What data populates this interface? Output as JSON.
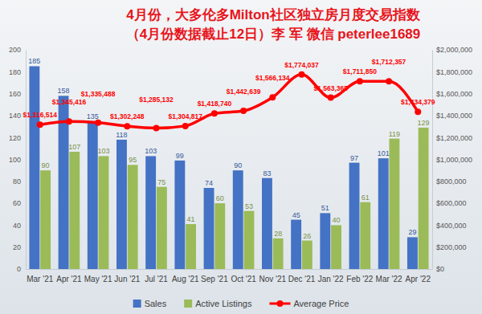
{
  "chart_data": {
    "type": "bar",
    "title": "4月份，大多伦多Milton社区独立房月度交易指数",
    "subtitle": "（4月份数据截止12日）李 军 微信 peterlee1689",
    "categories": [
      "Mar '21",
      "Apr '21",
      "May '21",
      "Jun '21",
      "Jul '21",
      "Aug '21",
      "Sep '21",
      "Oct '21",
      "Nov '21",
      "Dec '21",
      "Jan '22",
      "Feb '22",
      "Mar '22",
      "Apr '22"
    ],
    "series": [
      {
        "name": "Sales",
        "type": "bar",
        "color": "#4472c4",
        "values": [
          185,
          158,
          135,
          118,
          103,
          99,
          74,
          90,
          83,
          45,
          51,
          97,
          101,
          29
        ]
      },
      {
        "name": "Active Listings",
        "type": "bar",
        "color": "#9bbb59",
        "values": [
          90,
          107,
          103,
          95,
          75,
          41,
          60,
          53,
          28,
          26,
          40,
          61,
          119,
          129
        ]
      },
      {
        "name": "Average Price",
        "type": "line",
        "axis": "y2",
        "color": "#ff0000",
        "marker": "circle",
        "values": [
          1316514,
          1345416,
          1335488,
          1302248,
          1285132,
          1304817,
          1418740,
          1442639,
          1566134,
          1774037,
          1563365,
          1711850,
          1712357,
          1434379
        ],
        "value_labels": [
          "$1,316,514",
          "$1,345,416",
          "$1,335,488",
          "$1,302,248",
          "$1,285,132",
          "$1,304,817",
          "$1,418,740",
          "$1,442,639",
          "$1,566,134",
          "$1,774,037",
          "$1,563,365",
          "$1,711,850",
          "$1,712,357",
          "$1,434,379"
        ]
      }
    ],
    "ylim": [
      0,
      200
    ],
    "yticks": [
      0,
      20,
      40,
      60,
      80,
      100,
      120,
      140,
      160,
      180,
      200
    ],
    "y2lim": [
      0,
      2000000
    ],
    "y2ticks": [
      {
        "value": 0,
        "label": "$0"
      },
      {
        "value": 200000,
        "label": "$200,000"
      },
      {
        "value": 400000,
        "label": "$400,000"
      },
      {
        "value": 600000,
        "label": "$600,000"
      },
      {
        "value": 800000,
        "label": "$800,000"
      },
      {
        "value": 1000000,
        "label": "$1,000,000"
      },
      {
        "value": 1200000,
        "label": "$1,200,000"
      },
      {
        "value": 1400000,
        "label": "$1,400,000"
      },
      {
        "value": 1600000,
        "label": "$1,600,000"
      },
      {
        "value": 1800000,
        "label": "$1,800,000"
      },
      {
        "value": 2000000,
        "label": "$2,000,000"
      }
    ],
    "data_labels": true,
    "legend": "bottom",
    "grid": false
  }
}
